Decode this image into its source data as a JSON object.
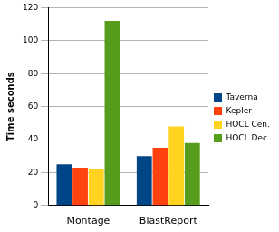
{
  "chart_data": {
    "type": "bar",
    "ylabel": "Time seconds",
    "categories": [
      "Montage",
      "BlastReport"
    ],
    "series": [
      {
        "name": "Taverna",
        "color": "#004586",
        "values": [
          25,
          30
        ]
      },
      {
        "name": "Kepler",
        "color": "#ff420e",
        "values": [
          23,
          35
        ]
      },
      {
        "name": "HOCL Cen.",
        "color": "#ffd320",
        "values": [
          22,
          48
        ]
      },
      {
        "name": "HOCL Dec.",
        "color": "#579d1c",
        "values": [
          112,
          38
        ]
      }
    ],
    "ylim": [
      0,
      120
    ],
    "yticks": [
      0,
      20,
      40,
      60,
      80,
      100,
      120
    ],
    "grid": true,
    "legend": "right"
  }
}
